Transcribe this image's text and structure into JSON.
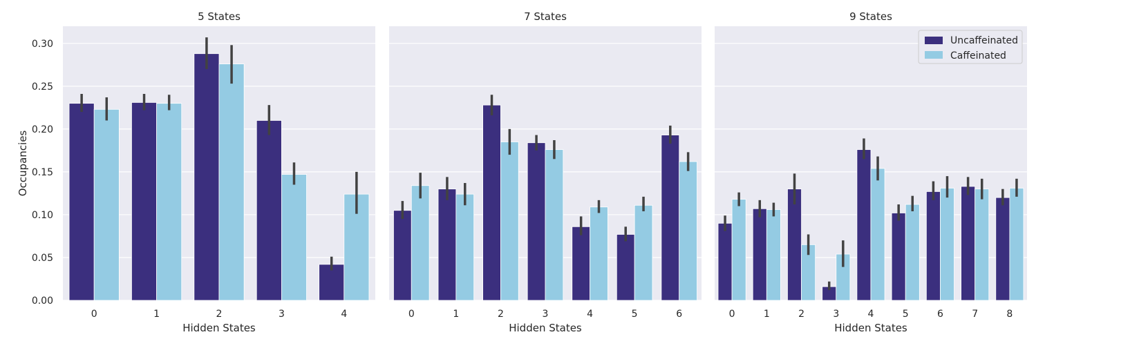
{
  "chart_data": {
    "type": "bar",
    "ylabel": "Occupancies",
    "xlabel": "Hidden States",
    "ylim": [
      0,
      0.32
    ],
    "yticks": [
      0.0,
      0.05,
      0.1,
      0.15,
      0.2,
      0.25,
      0.3
    ],
    "ytick_labels": [
      "0.00",
      "0.05",
      "0.10",
      "0.15",
      "0.20",
      "0.25",
      "0.30"
    ],
    "grid": true,
    "legend": {
      "placement": "top-right",
      "panel": 2,
      "entries": [
        "Uncaffeinated",
        "Caffeinated"
      ]
    },
    "colors": {
      "uncaffeinated": "#3b2f7e",
      "caffeinated": "#94cbe3",
      "errorbar": "#424242",
      "background": "#eaeaf2"
    },
    "panels": [
      {
        "title": "5 States",
        "xlabel": "Hidden States",
        "categories": [
          "0",
          "1",
          "2",
          "3",
          "4"
        ],
        "series": [
          {
            "name": "Uncaffeinated",
            "values": [
              0.23,
              0.231,
              0.288,
              0.21,
              0.042
            ],
            "err_low": [
              0.22,
              0.222,
              0.27,
              0.193,
              0.035
            ],
            "err_high": [
              0.241,
              0.241,
              0.307,
              0.228,
              0.051
            ]
          },
          {
            "name": "Caffeinated",
            "values": [
              0.223,
              0.23,
              0.276,
              0.147,
              0.124
            ],
            "err_low": [
              0.21,
              0.222,
              0.253,
              0.135,
              0.101
            ],
            "err_high": [
              0.237,
              0.24,
              0.298,
              0.161,
              0.15
            ]
          }
        ]
      },
      {
        "title": "7 States",
        "xlabel": "Hidden States",
        "categories": [
          "0",
          "1",
          "2",
          "3",
          "4",
          "5",
          "6"
        ],
        "series": [
          {
            "name": "Uncaffeinated",
            "values": [
              0.105,
              0.13,
              0.228,
              0.184,
              0.086,
              0.077,
              0.193
            ],
            "err_low": [
              0.095,
              0.117,
              0.216,
              0.175,
              0.076,
              0.069,
              0.183
            ],
            "err_high": [
              0.116,
              0.144,
              0.24,
              0.193,
              0.098,
              0.086,
              0.204
            ]
          },
          {
            "name": "Caffeinated",
            "values": [
              0.134,
              0.124,
              0.185,
              0.176,
              0.109,
              0.111,
              0.162
            ],
            "err_low": [
              0.119,
              0.111,
              0.17,
              0.165,
              0.102,
              0.104,
              0.151
            ],
            "err_high": [
              0.149,
              0.137,
              0.2,
              0.187,
              0.117,
              0.121,
              0.173
            ]
          }
        ]
      },
      {
        "title": "9 States",
        "xlabel": "Hidden States",
        "categories": [
          "0",
          "1",
          "2",
          "3",
          "4",
          "5",
          "6",
          "7",
          "8"
        ],
        "series": [
          {
            "name": "Uncaffeinated",
            "values": [
              0.09,
              0.107,
              0.13,
              0.016,
              0.176,
              0.102,
              0.127,
              0.133,
              0.12
            ],
            "err_low": [
              0.081,
              0.097,
              0.112,
              0.012,
              0.165,
              0.093,
              0.117,
              0.123,
              0.111
            ],
            "err_high": [
              0.099,
              0.117,
              0.148,
              0.022,
              0.189,
              0.112,
              0.139,
              0.144,
              0.13
            ]
          },
          {
            "name": "Caffeinated",
            "values": [
              0.118,
              0.106,
              0.065,
              0.054,
              0.154,
              0.112,
              0.131,
              0.13,
              0.131
            ],
            "err_low": [
              0.11,
              0.098,
              0.053,
              0.039,
              0.14,
              0.104,
              0.12,
              0.118,
              0.121
            ],
            "err_high": [
              0.126,
              0.114,
              0.077,
              0.07,
              0.168,
              0.122,
              0.145,
              0.142,
              0.142
            ]
          }
        ]
      }
    ]
  }
}
